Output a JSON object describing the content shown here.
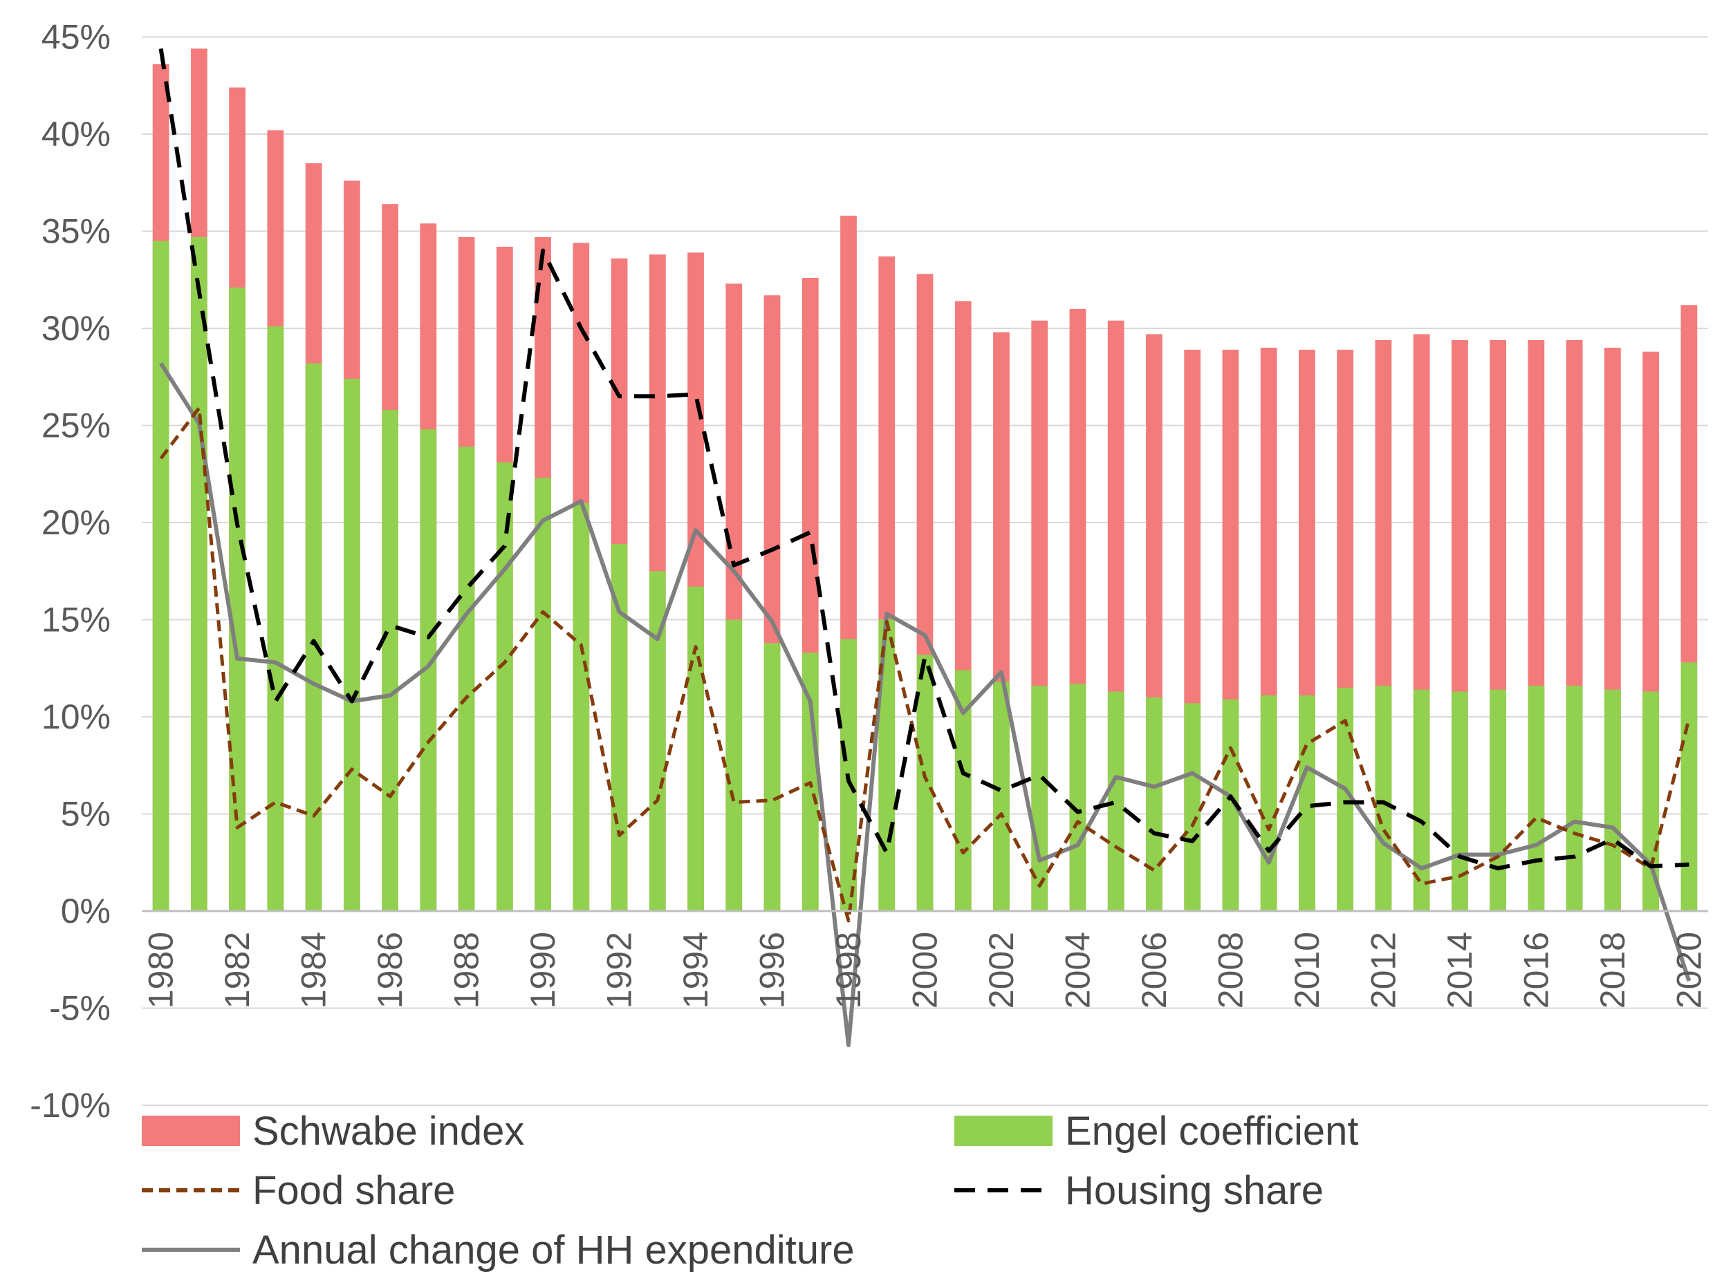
{
  "chart_data": {
    "type": "bar",
    "title": "",
    "xlabel": "",
    "ylabel": "",
    "ylim": [
      -10,
      45
    ],
    "y_tick_labels": [
      "-10%",
      "-5%",
      "0%",
      "5%",
      "10%",
      "15%",
      "20%",
      "25%",
      "30%",
      "35%",
      "40%",
      "45%"
    ],
    "y_tick_values": [
      -10,
      -5,
      0,
      5,
      10,
      15,
      20,
      25,
      30,
      35,
      40,
      45
    ],
    "grid": "horizontal",
    "legend_position": "bottom",
    "categories": [
      1980,
      1981,
      1982,
      1983,
      1984,
      1985,
      1986,
      1987,
      1988,
      1989,
      1990,
      1991,
      1992,
      1993,
      1994,
      1995,
      1996,
      1997,
      1998,
      1999,
      2000,
      2001,
      2002,
      2003,
      2004,
      2005,
      2006,
      2007,
      2008,
      2009,
      2010,
      2011,
      2012,
      2013,
      2014,
      2015,
      2016,
      2017,
      2018,
      2019,
      2020
    ],
    "x_tick_labels": [
      "1980",
      "1982",
      "1984",
      "1986",
      "1988",
      "1990",
      "1992",
      "1994",
      "1996",
      "1998",
      "2000",
      "2002",
      "2004",
      "2006",
      "2008",
      "2010",
      "2012",
      "2014",
      "2016",
      "2018",
      "2020"
    ],
    "series": [
      {
        "name": "Schwabe index",
        "kind": "bar",
        "color": "#f47b7b",
        "values": [
          43.6,
          44.4,
          42.4,
          40.2,
          38.5,
          37.6,
          36.4,
          35.4,
          34.7,
          34.2,
          34.7,
          34.4,
          33.6,
          33.8,
          33.9,
          32.3,
          31.7,
          32.6,
          35.8,
          33.7,
          32.8,
          31.4,
          29.8,
          30.4,
          31.0,
          30.4,
          29.7,
          28.9,
          28.9,
          29.0,
          28.9,
          28.9,
          29.4,
          29.7,
          29.4,
          29.4,
          29.4,
          29.4,
          29.0,
          28.8,
          31.2
        ]
      },
      {
        "name": "Engel coefficient",
        "kind": "bar",
        "color": "#92d050",
        "values": [
          34.5,
          34.7,
          32.1,
          30.1,
          28.2,
          27.4,
          25.8,
          24.8,
          23.9,
          23.1,
          22.3,
          21.0,
          18.9,
          17.5,
          16.7,
          15.0,
          13.8,
          13.3,
          14.0,
          15.0,
          13.2,
          12.4,
          11.8,
          11.6,
          11.7,
          11.3,
          11.0,
          10.7,
          10.9,
          11.1,
          11.1,
          11.5,
          11.6,
          11.4,
          11.3,
          11.4,
          11.6,
          11.6,
          11.4,
          11.3,
          12.8
        ]
      },
      {
        "name": "Food share",
        "kind": "line",
        "style": "dashed-short",
        "color": "#843c0c",
        "values": [
          23.3,
          25.9,
          4.3,
          5.6,
          4.9,
          7.3,
          5.9,
          8.7,
          11.0,
          12.8,
          15.4,
          13.7,
          3.9,
          5.7,
          13.6,
          5.6,
          5.7,
          6.6,
          -0.5,
          14.9,
          6.9,
          3.0,
          5.0,
          1.3,
          4.6,
          3.3,
          2.1,
          4.4,
          8.4,
          4.2,
          8.6,
          9.8,
          4.2,
          1.4,
          1.8,
          2.8,
          4.8,
          4.0,
          3.4,
          2.2,
          9.9
        ]
      },
      {
        "name": "Housing share",
        "kind": "line",
        "style": "dashed-long",
        "color": "#000000",
        "values": [
          44.4,
          31.9,
          19.9,
          10.8,
          13.9,
          10.8,
          14.7,
          14.1,
          16.6,
          18.8,
          34.0,
          30.0,
          26.5,
          26.5,
          26.6,
          17.8,
          18.6,
          19.5,
          6.7,
          3.0,
          13.1,
          7.1,
          6.2,
          7.0,
          5.1,
          5.6,
          4.0,
          3.6,
          5.9,
          3.1,
          5.4,
          5.6,
          5.6,
          4.6,
          2.8,
          2.2,
          2.6,
          2.8,
          3.7,
          2.3,
          2.4
        ]
      },
      {
        "name": "Annual change of HH expenditure",
        "kind": "line",
        "style": "solid",
        "color": "#7f7f7f",
        "values": [
          28.2,
          25.1,
          13.0,
          12.8,
          11.7,
          10.8,
          11.1,
          12.6,
          15.3,
          17.6,
          20.1,
          21.1,
          15.4,
          14.0,
          19.6,
          17.5,
          14.9,
          10.8,
          -6.9,
          15.3,
          14.2,
          10.2,
          12.3,
          2.6,
          3.4,
          6.9,
          6.4,
          7.1,
          5.9,
          2.5,
          7.4,
          6.3,
          3.5,
          2.2,
          2.9,
          2.9,
          3.4,
          4.6,
          4.3,
          2.4,
          -3.6
        ]
      }
    ]
  }
}
